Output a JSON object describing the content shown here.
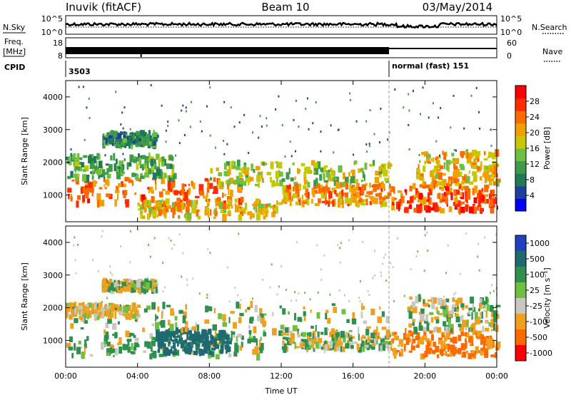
{
  "header": {
    "station": "Inuvik (fitACF)",
    "beam": "Beam 10",
    "date": "03/May/2014"
  },
  "strips": {
    "nsky_label": "N.Sky",
    "nsky_ticks": [
      "10^5",
      "10^0"
    ],
    "nsearch_label": "N.Search",
    "freq_label_1": "Freq.",
    "freq_label_2": "[MHz]",
    "freq_ticks": [
      "18",
      "8"
    ],
    "nave_label": "Nave",
    "nave_ticks": [
      "60",
      "0"
    ],
    "cpid_label": "CPID",
    "cpid_1": "3503",
    "cpid_2": "normal (fast) 151",
    "cpid_change_hour": 18
  },
  "chart_data": [
    {
      "type": "heatmap",
      "panel": "power",
      "ylabel": "Slant Range [km]",
      "xlabel": "",
      "xlim": [
        0,
        24
      ],
      "ylim": [
        180,
        4500
      ],
      "y_ticks": [
        1000,
        2000,
        3000,
        4000
      ],
      "colorbar_label": "Power [dB]",
      "colorbar_ticks": [
        "4",
        "8",
        "12",
        "16",
        "20",
        "24",
        "28"
      ],
      "colors": [
        "#0000ff",
        "#1f3fa0",
        "#1f7a55",
        "#3f9a4a",
        "#6fc040",
        "#c8c800",
        "#f0a000",
        "#ff6a00",
        "#ff2a00",
        "#ff0000"
      ],
      "bands": [
        {
          "x": [
            0,
            10
          ],
          "y": [
            700,
            1500
          ],
          "value": 24
        },
        {
          "x": [
            4,
            12
          ],
          "y": [
            300,
            800
          ],
          "value": 20
        },
        {
          "x": [
            0,
            6
          ],
          "y": [
            1500,
            2200
          ],
          "value": 12
        },
        {
          "x": [
            8,
            18
          ],
          "y": [
            1300,
            2000
          ],
          "value": 16
        },
        {
          "x": [
            12,
            18
          ],
          "y": [
            700,
            1300
          ],
          "value": 22
        },
        {
          "x": [
            18,
            24
          ],
          "y": [
            500,
            1300
          ],
          "value": 26
        },
        {
          "x": [
            19.5,
            24
          ],
          "y": [
            1300,
            2300
          ],
          "value": 20
        },
        {
          "x": [
            2,
            5
          ],
          "y": [
            2500,
            2900
          ],
          "value": 10
        }
      ]
    },
    {
      "type": "heatmap",
      "panel": "velocity",
      "ylabel": "Slant Range [km]",
      "xlabel": "Time UT",
      "xlim": [
        0,
        24
      ],
      "ylim": [
        180,
        4500
      ],
      "y_ticks": [
        1000,
        2000,
        3000,
        4000
      ],
      "x_ticks": [
        "00:00",
        "04:00",
        "08:00",
        "12:00",
        "16:00",
        "20:00",
        "00:00"
      ],
      "colorbar_label": "Velocity [m s⁻¹]",
      "colorbar_ticks": [
        "1000",
        "500",
        "100",
        "25",
        "-25",
        "-100",
        "-500",
        "-1000"
      ],
      "colors": [
        "#2040c0",
        "#1f6a70",
        "#2f8f4f",
        "#6fc040",
        "#c8c8c0",
        "#f0a020",
        "#ff6a00",
        "#ff0000"
      ],
      "bands": [
        {
          "x": [
            0,
            11
          ],
          "y": [
            500,
            1200
          ],
          "value": 100
        },
        {
          "x": [
            5,
            9
          ],
          "y": [
            600,
            1300
          ],
          "value": 500
        },
        {
          "x": [
            0,
            18
          ],
          "y": [
            1200,
            2100
          ],
          "value": 0
        },
        {
          "x": [
            0,
            4
          ],
          "y": [
            1700,
            2100
          ],
          "value": -100
        },
        {
          "x": [
            12,
            18
          ],
          "y": [
            700,
            1200
          ],
          "value": 25
        },
        {
          "x": [
            18,
            24
          ],
          "y": [
            500,
            1300
          ],
          "value": -300
        },
        {
          "x": [
            19,
            24
          ],
          "y": [
            1300,
            2300
          ],
          "value": 0
        },
        {
          "x": [
            2,
            5
          ],
          "y": [
            2500,
            2800
          ],
          "value": 0
        }
      ]
    }
  ]
}
